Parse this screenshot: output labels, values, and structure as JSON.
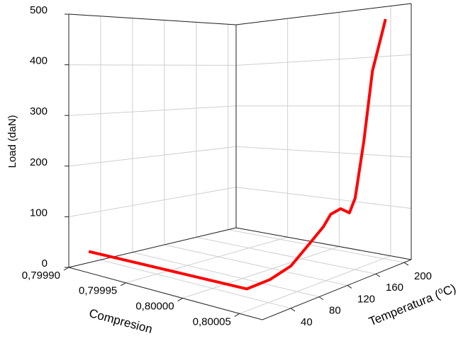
{
  "chart_data": {
    "type": "line3d",
    "x_label": "Compresion",
    "y_label": "Temperatura (⁰C)",
    "z_label": "Load (daN)",
    "xlim": [
      0.7999,
      0.80007
    ],
    "ylim": [
      0,
      210
    ],
    "zlim": [
      0,
      500
    ],
    "xticks": [
      {
        "value": 0.7999,
        "label": "0,79990"
      },
      {
        "value": 0.79995,
        "label": "0,79995"
      },
      {
        "value": 0.8,
        "label": "0,80000"
      },
      {
        "value": 0.80005,
        "label": "0,80005"
      }
    ],
    "yticks": [
      40,
      80,
      120,
      160,
      200
    ],
    "zticks": [
      0,
      100,
      200,
      300,
      400,
      500
    ],
    "grid": true,
    "series": [
      {
        "color": "#ff0000",
        "x": [
          0.799905,
          0.800045,
          0.800045,
          0.800045,
          0.800045,
          0.800045,
          0.800045,
          0.800045,
          0.800045,
          0.800045,
          0.800045,
          0.800045,
          0.800045,
          0.800045
        ],
        "y": [
          18,
          18,
          50,
          79,
          104,
          124,
          134,
          148,
          160,
          168,
          180,
          192,
          207,
          210
        ],
        "z": [
          28,
          31,
          33,
          44,
          72,
          96,
          115,
          120,
          107,
          132,
          238,
          374,
          457,
          475
        ]
      }
    ]
  }
}
